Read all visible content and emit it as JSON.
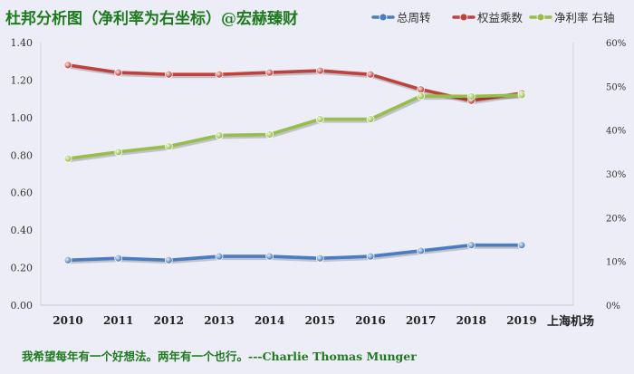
{
  "header": {
    "title": "杜邦分析图（净利率为右坐标）@宏赫臻财"
  },
  "legend": {
    "items": [
      {
        "label": "总周转",
        "color": "#4a7cc4"
      },
      {
        "label": "权益乘数",
        "color": "#c0413b"
      },
      {
        "label": "净利率 右轴",
        "color": "#97bd4a"
      }
    ]
  },
  "chart_data": {
    "type": "line",
    "x": [
      "2010",
      "2011",
      "2012",
      "2013",
      "2014",
      "2015",
      "2016",
      "2017",
      "2018",
      "2019"
    ],
    "xlabel": "上海机场",
    "left_axis": {
      "ylim": [
        0,
        1.4
      ],
      "ticks": [
        "0.00",
        "0.20",
        "0.40",
        "0.60",
        "0.80",
        "1.00",
        "1.20",
        "1.40"
      ]
    },
    "right_axis": {
      "ylim": [
        0,
        60
      ],
      "ticks": [
        "0%",
        "10%",
        "20%",
        "30%",
        "40%",
        "50%",
        "60%"
      ]
    },
    "series": [
      {
        "name": "总周转",
        "axis": "left",
        "color": "#4a7cc4",
        "values": [
          0.24,
          0.25,
          0.24,
          0.26,
          0.26,
          0.25,
          0.26,
          0.29,
          0.32,
          0.32
        ]
      },
      {
        "name": "权益乘数",
        "axis": "left",
        "color": "#c0413b",
        "values": [
          1.28,
          1.24,
          1.23,
          1.23,
          1.24,
          1.25,
          1.23,
          1.15,
          1.09,
          1.13
        ]
      },
      {
        "name": "净利率 右轴",
        "axis": "right",
        "color": "#97bd4a",
        "values": [
          33.5,
          35.0,
          36.3,
          38.8,
          39.0,
          42.5,
          42.5,
          47.8,
          47.7,
          48.0
        ]
      }
    ],
    "grid": false,
    "legend_position": "top-right"
  },
  "footer": {
    "quote": "我希望每年有一个好想法。两年有一个也行。---Charlie Thomas  Munger"
  }
}
